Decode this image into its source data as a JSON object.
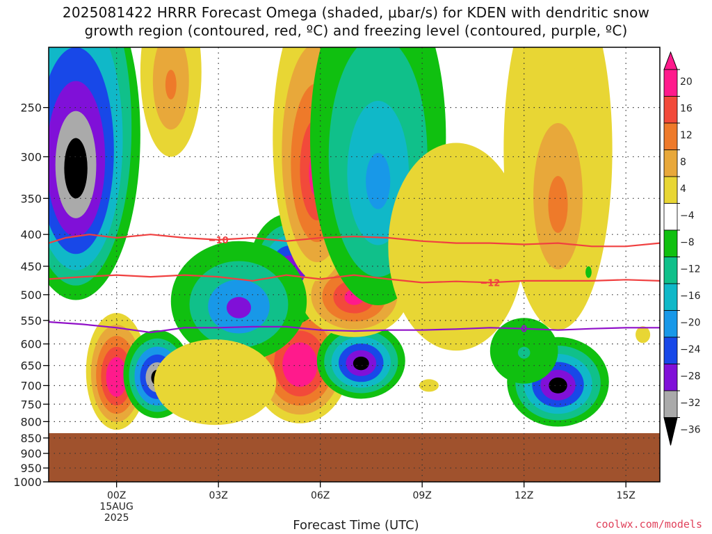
{
  "title_line1": "2025081422 HRRR Forecast Omega (shaded, μbar/s) for KDEN with dendritic snow",
  "title_line2": "growth region (contoured, red, ºC) and freezing level (contoured, purple, ºC)",
  "xlabel": "Forecast Time (UTC)",
  "credit": "coolwx.com/models",
  "chart_data": {
    "type": "heatmap",
    "title": "2025081422 HRRR Forecast Omega (shaded, μbar/s) for KDEN with dendritic snow growth region (contoured, red, ºC) and freezing level (contoured, purple, ºC)",
    "xlabel": "Forecast Time (UTC)",
    "ylabel": "",
    "x_ticks": [
      {
        "hour": 0,
        "label": "00Z",
        "sub1": "15AUG",
        "sub2": "2025"
      },
      {
        "hour": 3,
        "label": "03Z"
      },
      {
        "hour": 6,
        "label": "06Z"
      },
      {
        "hour": 9,
        "label": "09Z"
      },
      {
        "hour": 12,
        "label": "12Z"
      },
      {
        "hour": 15,
        "label": "15Z"
      }
    ],
    "xlim": [
      -2,
      16
    ],
    "y_ticks": [
      250,
      300,
      350,
      400,
      450,
      500,
      550,
      600,
      650,
      700,
      750,
      800,
      850,
      900,
      950,
      1000
    ],
    "ylim_hPa": [
      200,
      1000
    ],
    "terrain_top_hPa": 835,
    "terrain_color": "#a0522d",
    "colorbar": {
      "labels": [
        "20",
        "16",
        "12",
        "8",
        "4",
        "−4",
        "−8",
        "−12",
        "−16",
        "−20",
        "−24",
        "−28",
        "−32",
        "−36"
      ],
      "colors": [
        "#ff1a8c",
        "#f24a3a",
        "#ee7a2a",
        "#e8a83a",
        "#e8d634",
        "#ffffff",
        "#10c010",
        "#10c08a",
        "#10b8c8",
        "#1898e8",
        "#1848e8",
        "#8010d8",
        "#aaaaaa",
        "#000000"
      ],
      "top_color": "#ff1a8c",
      "bottom_color": "#000000"
    },
    "contours": [
      {
        "name": "-10",
        "color": "#f04040",
        "label": "−10",
        "points": [
          [
            -2,
            413
          ],
          [
            -1.5,
            405
          ],
          [
            -0.8,
            400
          ],
          [
            0,
            405
          ],
          [
            1,
            400
          ],
          [
            2,
            405
          ],
          [
            3,
            408
          ],
          [
            4,
            405
          ],
          [
            5,
            410
          ],
          [
            6,
            405
          ],
          [
            7,
            403
          ],
          [
            8,
            405
          ],
          [
            9,
            410
          ],
          [
            10,
            413
          ],
          [
            11,
            413
          ],
          [
            12,
            415
          ],
          [
            13,
            413
          ],
          [
            14,
            418
          ],
          [
            15,
            418
          ],
          [
            16,
            413
          ]
        ]
      },
      {
        "name": "-12",
        "color": "#f04040",
        "label": "−12",
        "points": [
          [
            -2,
            472
          ],
          [
            -1,
            468
          ],
          [
            0,
            465
          ],
          [
            1,
            468
          ],
          [
            2,
            465
          ],
          [
            3,
            468
          ],
          [
            4,
            475
          ],
          [
            5,
            465
          ],
          [
            6,
            472
          ],
          [
            7,
            465
          ],
          [
            8,
            472
          ],
          [
            9,
            478
          ],
          [
            10,
            476
          ],
          [
            11,
            478
          ],
          [
            12,
            475
          ],
          [
            13,
            475
          ],
          [
            14,
            475
          ],
          [
            15,
            473
          ],
          [
            16,
            475
          ]
        ]
      },
      {
        "name": "0",
        "color": "#9010c8",
        "label": "0",
        "points": [
          [
            -2,
            553
          ],
          [
            -1,
            558
          ],
          [
            0,
            565
          ],
          [
            1,
            575
          ],
          [
            2,
            565
          ],
          [
            3,
            565
          ],
          [
            4,
            563
          ],
          [
            5,
            563
          ],
          [
            6,
            570
          ],
          [
            7,
            572
          ],
          [
            8,
            570
          ],
          [
            9,
            570
          ],
          [
            10,
            568
          ],
          [
            11,
            565
          ],
          [
            12,
            567
          ],
          [
            13,
            570
          ],
          [
            14,
            567
          ],
          [
            15,
            565
          ],
          [
            16,
            565
          ]
        ]
      }
    ],
    "blobs": [
      {
        "cx": -1.2,
        "cy": 315,
        "rx": 1.9,
        "ry": 390,
        "value": -36,
        "rings": 7
      },
      {
        "cx": 0.0,
        "cy": 680,
        "rx": 0.9,
        "ry": 290,
        "value": 28,
        "rings": 6
      },
      {
        "cx": 1.2,
        "cy": 680,
        "rx": 1.0,
        "ry": 220,
        "value": -36,
        "rings": 6
      },
      {
        "cx": 5.4,
        "cy": 650,
        "rx": 1.5,
        "ry": 310,
        "value": 26,
        "rings": 6
      },
      {
        "cx": 7.2,
        "cy": 645,
        "rx": 1.3,
        "ry": 180,
        "value": -32,
        "rings": 6
      },
      {
        "cx": 5.1,
        "cy": 465,
        "rx": 1.2,
        "ry": 190,
        "value": -32,
        "rings": 6
      },
      {
        "cx": 7.0,
        "cy": 505,
        "rx": 1.6,
        "ry": 160,
        "value": 22,
        "rings": 5
      },
      {
        "cx": 3.6,
        "cy": 525,
        "rx": 2.0,
        "ry": 230,
        "value": -24,
        "rings": 4
      },
      {
        "cx": 5.9,
        "cy": 320,
        "rx": 1.3,
        "ry": 310,
        "value": 20,
        "rings": 5
      },
      {
        "cx": 7.7,
        "cy": 330,
        "rx": 2.0,
        "ry": 380,
        "value": -16,
        "rings": 4
      },
      {
        "cx": 13.0,
        "cy": 700,
        "rx": 1.5,
        "ry": 230,
        "value": -32,
        "rings": 6
      },
      {
        "cx": 13.0,
        "cy": 360,
        "rx": 1.6,
        "ry": 420,
        "value": 14,
        "rings": 4
      },
      {
        "cx": 1.6,
        "cy": 230,
        "rx": 0.9,
        "ry": 140,
        "value": 12,
        "rings": 3
      },
      {
        "cx": 10.0,
        "cy": 450,
        "rx": 2.0,
        "ry": 330,
        "value": 6,
        "rings": 2
      },
      {
        "cx": 9.2,
        "cy": 700,
        "rx": 1.6,
        "ry": 180,
        "value": 5,
        "rings": 1
      },
      {
        "cx": 12.0,
        "cy": 620,
        "rx": 1.0,
        "ry": 150,
        "value": -10,
        "rings": 2
      },
      {
        "cx": 13.9,
        "cy": 460,
        "rx": 0.5,
        "ry": 110,
        "value": -6,
        "rings": 1
      },
      {
        "cx": 11.3,
        "cy": 165,
        "rx": 1.2,
        "ry": 130,
        "value": 4,
        "rings": 1
      },
      {
        "cx": 13.0,
        "cy": 170,
        "rx": 0.6,
        "ry": 110,
        "value": -6,
        "rings": 1
      },
      {
        "cx": 15.5,
        "cy": 580,
        "rx": 1.2,
        "ry": 200,
        "value": 5,
        "rings": 1
      },
      {
        "cx": 2.9,
        "cy": 700,
        "rx": 1.8,
        "ry": 220,
        "value": 6,
        "rings": 2
      }
    ]
  }
}
